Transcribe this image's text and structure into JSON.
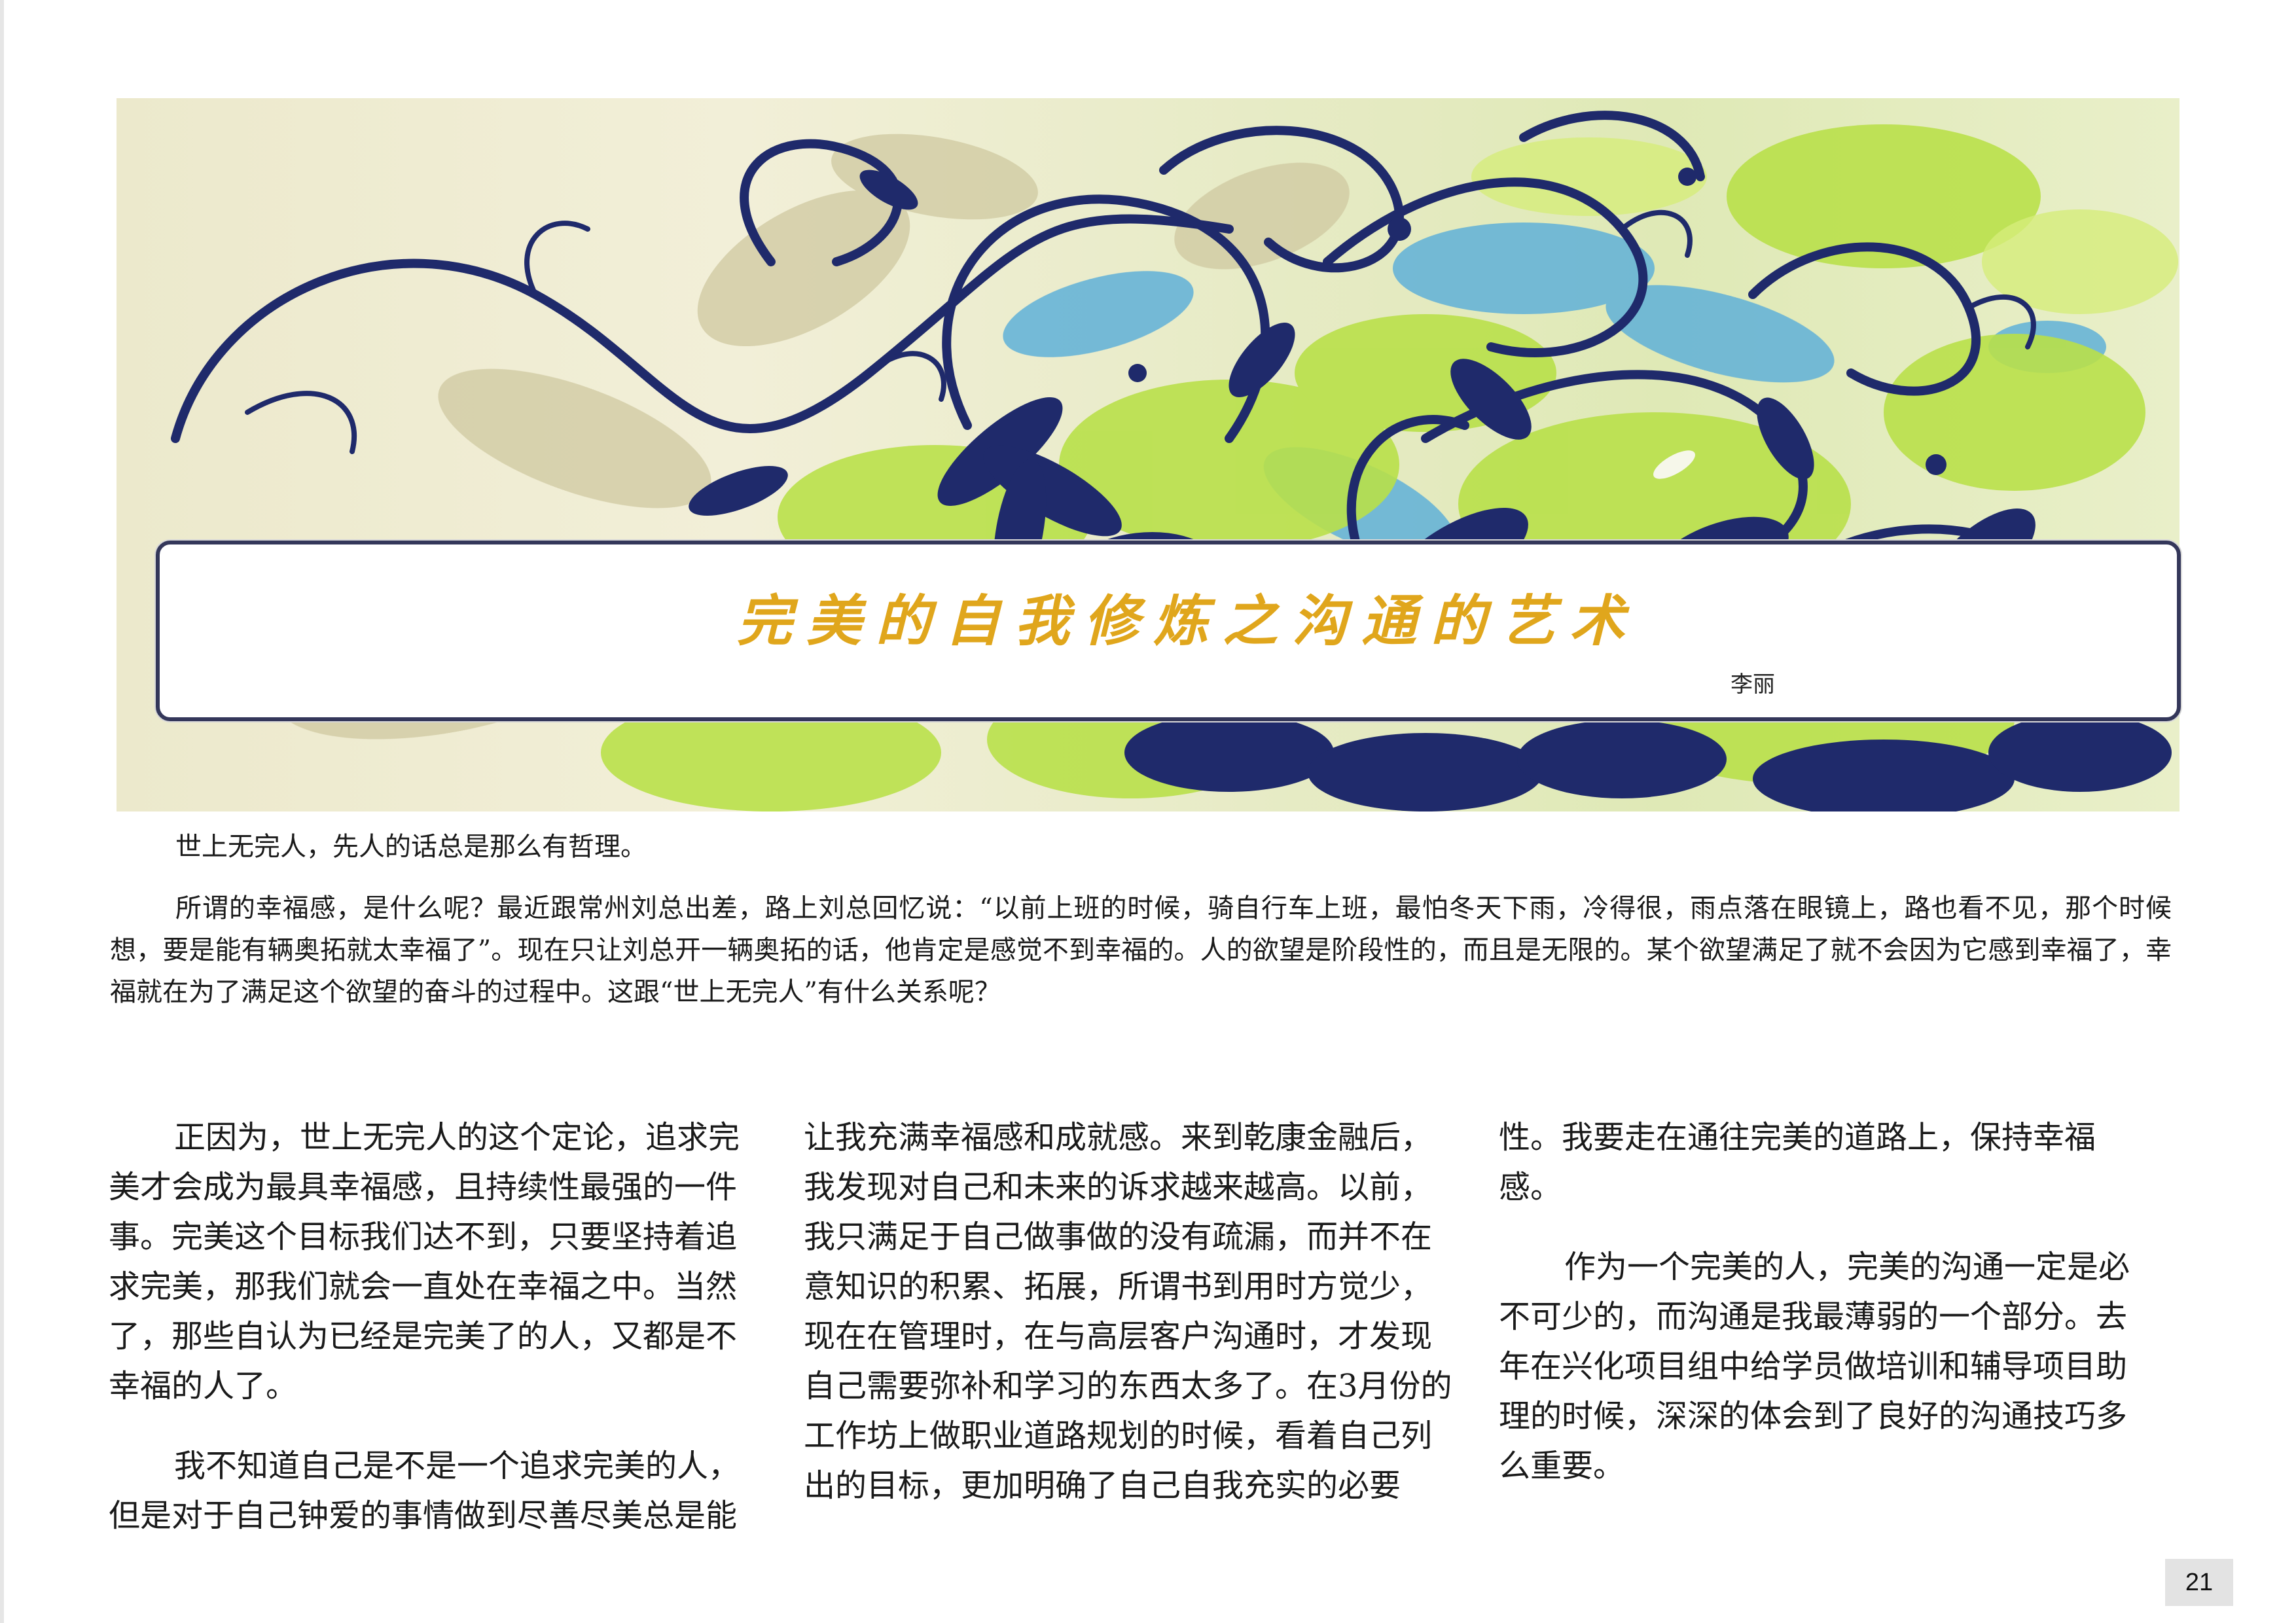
{
  "article": {
    "title": "完美的自我修炼之沟通的艺术",
    "author": "李丽",
    "intro_paragraphs": [
      "世上无完人，先人的话总是那么有哲理。",
      "所谓的幸福感，是什么呢？最近跟常州刘总出差，路上刘总回忆说：“以前上班的时候，骑自行车上班，最怕冬天下雨，冷得很，雨点落在眼镜上，路也看不见，那个时候想，要是能有辆奥拓就太幸福了”。现在只让刘总开一辆奥拓的话，他肯定是感觉不到幸福的。人的欲望是阶段性的，而且是无限的。某个欲望满足了就不会因为它感到幸福了，幸福就在为了满足这个欲望的奋斗的过程中。这跟“世上无完人”有什么关系呢？"
    ],
    "column1": {
      "p1": "正因为，世上无完人的这个定论，追求完美才会成为最具幸福感，且持续性最强的一件事。完美这个目标我们达不到，只要坚持着追求完美，那我们就会一直处在幸福之中。当然了，那些自认为已经是完美了的人，又都是不幸福的人了。",
      "p2": "我不知道自己是不是一个追求完美的人，但是对于自己钟爱的事情做到尽善尽美总是能"
    },
    "column2": {
      "p1": "让我充满幸福感和成就感。来到乾康金融后，我发现对自己和未来的诉求越来越高。以前，我只满足于自己做事做的没有疏漏，而并不在意知识的积累、拓展，所谓书到用时方觉少，现在在管理时，在与高层客户沟通时，才发现自己需要弥补和学习的东西太多了。在3月份的工作坊上做职业道路规划的时候，看着自己列出的目标，更加明确了自己自我充实的必要"
    },
    "column3": {
      "p1": "性。我要走在通往完美的道路上，保持幸福感。",
      "p2": "作为一个完美的人，完美的沟通一定是必不可少的，而沟通是我最薄弱的一个部分。去年在兴化项目组中给学员做培训和辅导项目助理的时候，深深的体会到了良好的沟通技巧多么重要。"
    }
  },
  "page_number": "21",
  "colors": {
    "title": "#e0a61c",
    "banner_navy": "#1f2a6b",
    "banner_lime": "#b9e04a",
    "banner_sky": "#5fb0d8"
  }
}
